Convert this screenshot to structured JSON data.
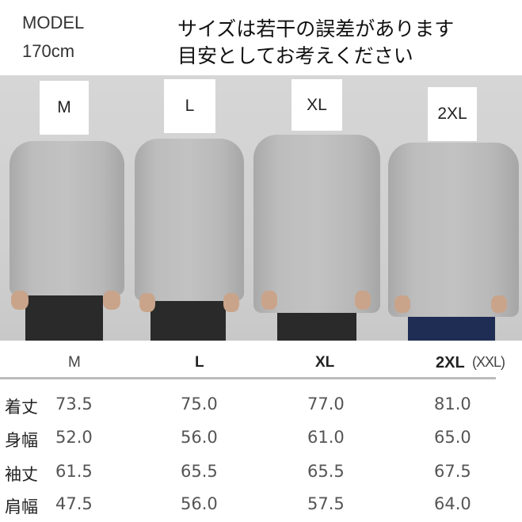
{
  "model": {
    "label": "MODEL",
    "height": "170cm"
  },
  "note": {
    "line1": "サイズは若干の誤差があります",
    "line2": "目安としてお考えください"
  },
  "photo_labels": [
    "M",
    "L",
    "XL",
    "2XL"
  ],
  "table": {
    "headers": [
      "M",
      "L",
      "XL",
      "2XL",
      "(XXL)"
    ],
    "rows": [
      {
        "label": "着丈",
        "values": [
          "73.5",
          "75.0",
          "77.0",
          "81.0"
        ]
      },
      {
        "label": "身幅",
        "values": [
          "52.0",
          "56.0",
          "61.0",
          "65.0"
        ]
      },
      {
        "label": "袖丈",
        "values": [
          "61.5",
          "65.5",
          "65.5",
          "67.5"
        ]
      },
      {
        "label": "肩幅",
        "values": [
          "47.5",
          "56.0",
          "57.5",
          "64.0"
        ]
      }
    ]
  }
}
